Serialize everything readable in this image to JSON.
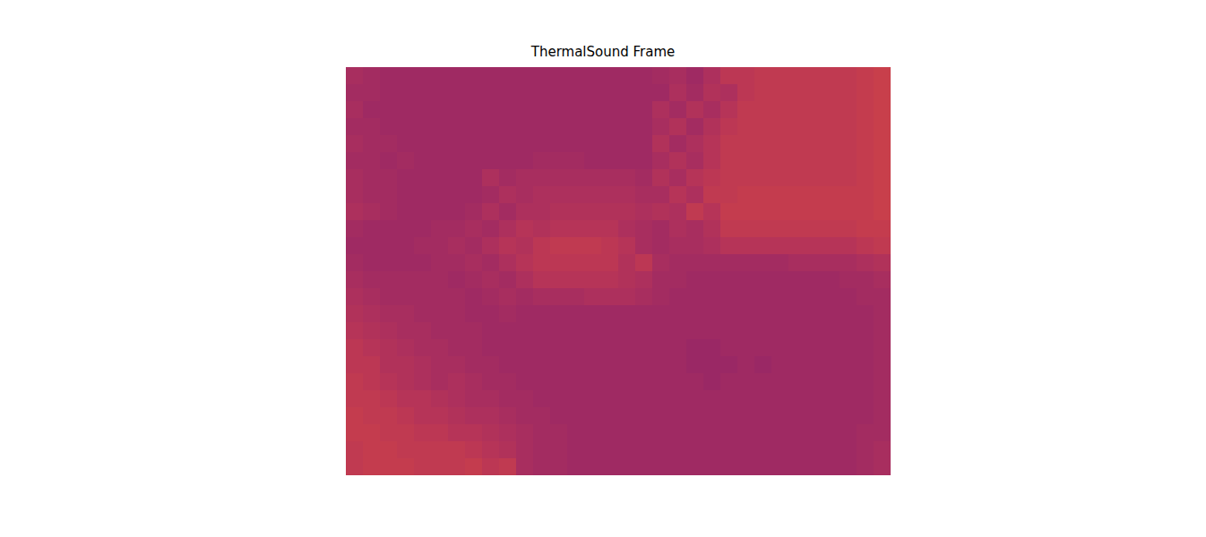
{
  "chart_data": {
    "type": "heatmap",
    "title": "ThermalSound Frame",
    "tick_labels": false,
    "zlim": [
      10,
      92
    ],
    "cells": [
      [
        47,
        46,
        45,
        45,
        45,
        45,
        45,
        45,
        45,
        45,
        45,
        45,
        45,
        45,
        45,
        45,
        45,
        45,
        46,
        47,
        45,
        48,
        51,
        51,
        52,
        52,
        52,
        52,
        52,
        52,
        53,
        54
      ],
      [
        46,
        46,
        45,
        45,
        45,
        45,
        45,
        45,
        45,
        45,
        45,
        45,
        45,
        45,
        45,
        45,
        45,
        45,
        45,
        48,
        46,
        49,
        48,
        51,
        52,
        52,
        52,
        52,
        52,
        52,
        53,
        54
      ],
      [
        47,
        45,
        45,
        45,
        45,
        45,
        45,
        45,
        45,
        45,
        45,
        45,
        45,
        45,
        45,
        45,
        45,
        45,
        48,
        46,
        49,
        47,
        50,
        52,
        52,
        52,
        52,
        52,
        52,
        52,
        53,
        54
      ],
      [
        46,
        46,
        45,
        45,
        45,
        45,
        45,
        45,
        45,
        45,
        45,
        45,
        45,
        45,
        45,
        45,
        45,
        45,
        47,
        49,
        46,
        49,
        51,
        52,
        52,
        52,
        52,
        52,
        52,
        52,
        53,
        54
      ],
      [
        47,
        46,
        46,
        45,
        45,
        45,
        45,
        45,
        45,
        45,
        45,
        45,
        45,
        45,
        45,
        45,
        45,
        45,
        49,
        46,
        48,
        50,
        52,
        52,
        52,
        52,
        52,
        52,
        52,
        52,
        53,
        54
      ],
      [
        46,
        46,
        45,
        46,
        45,
        45,
        45,
        45,
        45,
        45,
        45,
        46,
        46,
        46,
        45,
        45,
        45,
        45,
        47,
        49,
        47,
        50,
        52,
        52,
        52,
        52,
        52,
        52,
        52,
        52,
        53,
        54
      ],
      [
        47,
        46,
        46,
        45,
        45,
        45,
        45,
        45,
        48,
        46,
        47,
        47,
        47,
        47,
        47,
        47,
        47,
        46,
        49,
        47,
        50,
        51,
        52,
        52,
        52,
        52,
        52,
        52,
        52,
        52,
        53,
        54
      ],
      [
        47,
        46,
        46,
        45,
        45,
        45,
        45,
        45,
        46,
        48,
        47,
        48,
        48,
        48,
        48,
        48,
        48,
        47,
        47,
        50,
        48,
        52,
        52,
        53,
        53,
        53,
        53,
        53,
        53,
        53,
        53,
        54
      ],
      [
        48,
        47,
        46,
        45,
        45,
        45,
        45,
        46,
        48,
        46,
        48,
        48,
        49,
        49,
        49,
        49,
        49,
        48,
        49,
        48,
        52,
        50,
        53,
        53,
        53,
        53,
        53,
        53,
        53,
        53,
        53,
        54
      ],
      [
        46,
        45,
        45,
        45,
        45,
        46,
        46,
        47,
        46,
        48,
        50,
        49,
        50,
        50,
        50,
        50,
        48,
        47,
        46,
        48,
        47,
        49,
        52,
        52,
        52,
        52,
        52,
        52,
        52,
        52,
        53,
        53
      ],
      [
        45,
        45,
        45,
        45,
        46,
        46,
        47,
        46,
        48,
        50,
        49,
        51,
        52,
        52,
        52,
        51,
        50,
        47,
        46,
        47,
        47,
        48,
        50,
        50,
        50,
        50,
        50,
        50,
        50,
        50,
        51,
        52
      ],
      [
        46,
        45,
        45,
        45,
        45,
        46,
        46,
        47,
        46,
        48,
        50,
        51,
        51,
        51,
        51,
        51,
        49,
        51,
        47,
        46,
        46,
        46,
        46,
        46,
        46,
        46,
        47,
        47,
        47,
        47,
        48,
        49
      ],
      [
        47,
        46,
        46,
        46,
        46,
        46,
        45,
        46,
        47,
        46,
        48,
        50,
        50,
        50,
        50,
        50,
        49,
        48,
        46,
        46,
        45,
        45,
        45,
        45,
        45,
        45,
        45,
        45,
        45,
        46,
        46,
        47
      ],
      [
        48,
        47,
        46,
        46,
        46,
        46,
        46,
        45,
        46,
        47,
        46,
        47,
        47,
        47,
        48,
        48,
        48,
        47,
        46,
        45,
        45,
        45,
        45,
        45,
        45,
        45,
        45,
        45,
        45,
        45,
        46,
        46
      ],
      [
        49,
        48,
        47,
        47,
        46,
        46,
        46,
        45,
        45,
        46,
        45,
        45,
        45,
        45,
        45,
        45,
        45,
        45,
        45,
        45,
        45,
        45,
        45,
        45,
        45,
        45,
        45,
        45,
        45,
        45,
        45,
        46
      ],
      [
        50,
        49,
        48,
        47,
        47,
        46,
        46,
        46,
        45,
        45,
        45,
        45,
        45,
        45,
        45,
        45,
        45,
        45,
        45,
        45,
        45,
        45,
        45,
        45,
        45,
        45,
        45,
        45,
        45,
        45,
        45,
        46
      ],
      [
        51,
        50,
        49,
        48,
        47,
        47,
        46,
        46,
        45,
        45,
        45,
        45,
        45,
        45,
        45,
        45,
        45,
        45,
        45,
        45,
        44,
        44,
        45,
        45,
        45,
        45,
        45,
        45,
        45,
        45,
        45,
        46
      ],
      [
        51,
        51,
        49,
        49,
        48,
        47,
        47,
        46,
        46,
        45,
        45,
        45,
        45,
        45,
        45,
        45,
        45,
        45,
        45,
        45,
        44,
        44,
        44,
        45,
        44,
        45,
        45,
        45,
        45,
        45,
        45,
        46
      ],
      [
        52,
        51,
        50,
        49,
        48,
        47,
        48,
        47,
        46,
        46,
        45,
        45,
        45,
        45,
        45,
        45,
        45,
        45,
        45,
        45,
        45,
        44,
        45,
        45,
        45,
        45,
        45,
        45,
        45,
        45,
        45,
        46
      ],
      [
        52,
        52,
        51,
        50,
        50,
        49,
        48,
        47,
        47,
        46,
        46,
        45,
        45,
        45,
        45,
        45,
        45,
        45,
        45,
        45,
        45,
        45,
        45,
        45,
        45,
        45,
        45,
        45,
        45,
        45,
        45,
        46
      ],
      [
        53,
        52,
        52,
        51,
        50,
        50,
        49,
        48,
        48,
        47,
        46,
        46,
        45,
        45,
        45,
        45,
        45,
        45,
        45,
        45,
        45,
        45,
        45,
        45,
        45,
        45,
        45,
        45,
        45,
        45,
        45,
        46
      ],
      [
        53,
        53,
        52,
        52,
        51,
        51,
        50,
        50,
        49,
        48,
        47,
        46,
        46,
        45,
        45,
        45,
        45,
        45,
        45,
        45,
        45,
        45,
        45,
        45,
        45,
        45,
        45,
        45,
        45,
        45,
        46,
        46
      ],
      [
        52,
        53,
        53,
        52,
        52,
        52,
        52,
        51,
        50,
        49,
        47,
        46,
        46,
        45,
        45,
        45,
        45,
        45,
        45,
        45,
        45,
        45,
        45,
        45,
        45,
        45,
        45,
        45,
        45,
        45,
        46,
        47
      ],
      [
        52,
        53,
        53,
        53,
        52,
        52,
        52,
        53,
        51,
        52,
        47,
        46,
        46,
        45,
        45,
        45,
        45,
        45,
        45,
        45,
        45,
        45,
        45,
        45,
        45,
        45,
        45,
        45,
        45,
        45,
        46,
        47
      ]
    ]
  }
}
